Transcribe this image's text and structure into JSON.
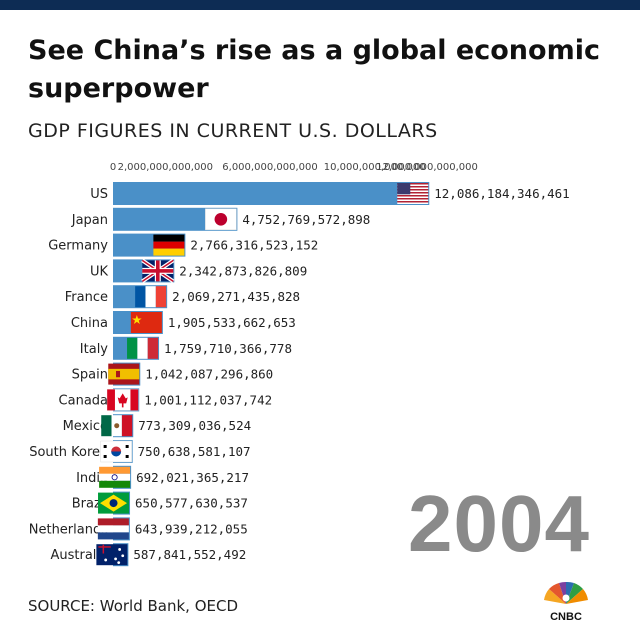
{
  "title": "See China’s rise as a global economic superpower",
  "subtitle": "GDP FIGURES IN CURRENT U.S. DOLLARS",
  "year": "2004",
  "source": "SOURCE: World Bank, OECD",
  "logo_text": "CNBC",
  "colors": {
    "bar": "#4a90c8",
    "topbar": "#0d2c54",
    "year": "#8a8a8a"
  },
  "chart_data": {
    "type": "bar",
    "orientation": "horizontal",
    "title": "See China’s rise as a global economic superpower",
    "subtitle": "GDP FIGURES IN CURRENT U.S. DOLLARS",
    "xlim": [
      0,
      14000000000000
    ],
    "ticks": [
      {
        "value": 0,
        "label": "0"
      },
      {
        "value": 2000000000000,
        "label": "2,000,000,000,000"
      },
      {
        "value": 6000000000000,
        "label": "6,000,000,000,000"
      },
      {
        "value": 10000000000000,
        "label": "10,000,000,000,000"
      },
      {
        "value": 12000000000000,
        "label": "12,000,000,000,000"
      }
    ],
    "categories": [
      "US",
      "Japan",
      "Germany",
      "UK",
      "France",
      "China",
      "Italy",
      "Spain",
      "Canada",
      "Mexico",
      "South Korea",
      "India",
      "Brazil",
      "Netherlands",
      "Australia"
    ],
    "values": [
      12086184346461,
      4752769572898,
      2766316523152,
      2342873826809,
      2069271435828,
      1905533662653,
      1759710366778,
      1042087296860,
      1001112037742,
      773309036524,
      750638581107,
      692021365217,
      650577630537,
      643939212055,
      587841552492
    ],
    "labels": [
      "12,086,184,346,461",
      "4,752,769,572,898",
      "2,766,316,523,152",
      "2,342,873,826,809",
      "2,069,271,435,828",
      "1,905,533,662,653",
      "1,759,710,366,778",
      "1,042,087,296,860",
      "1,001,112,037,742",
      "773,309,036,524",
      "750,638,581,107",
      "692,021,365,217",
      "650,577,630,537",
      "643,939,212,055",
      "587,841,552,492"
    ],
    "flags": [
      "us-flag-icon",
      "japan-flag-icon",
      "germany-flag-icon",
      "uk-flag-icon",
      "france-flag-icon",
      "china-flag-icon",
      "italy-flag-icon",
      "spain-flag-icon",
      "canada-flag-icon",
      "mexico-flag-icon",
      "south-korea-flag-icon",
      "india-flag-icon",
      "brazil-flag-icon",
      "netherlands-flag-icon",
      "australia-flag-icon"
    ],
    "grid": false,
    "legend": "none"
  }
}
